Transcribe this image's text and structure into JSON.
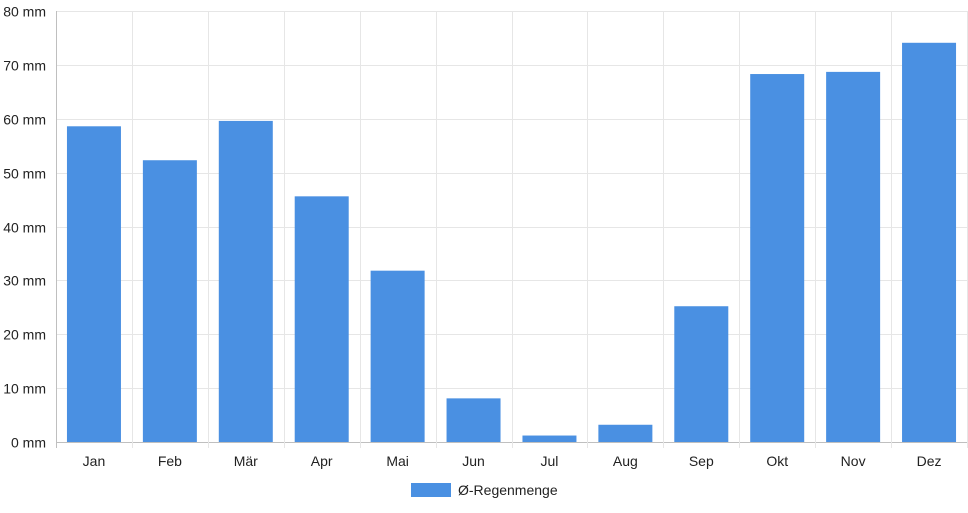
{
  "chart_data": {
    "type": "bar",
    "categories": [
      "Jan",
      "Feb",
      "Mär",
      "Apr",
      "Mai",
      "Jun",
      "Jul",
      "Aug",
      "Sep",
      "Okt",
      "Nov",
      "Dez"
    ],
    "series": [
      {
        "name": "Ø-Regenmenge",
        "color": "#4a90e2",
        "values": [
          58.6,
          52.3,
          59.6,
          45.6,
          31.8,
          8.1,
          1.2,
          3.2,
          25.2,
          68.3,
          68.7,
          74.1
        ]
      }
    ],
    "y_ticks": [
      "0 mm",
      "10 mm",
      "20 mm",
      "30 mm",
      "40 mm",
      "50 mm",
      "60 mm",
      "70 mm",
      "80 mm"
    ],
    "y_tick_values": [
      0,
      10,
      20,
      30,
      40,
      50,
      60,
      70,
      80
    ],
    "ylim": [
      0,
      80
    ],
    "grid": true,
    "legend_position": "bottom"
  }
}
